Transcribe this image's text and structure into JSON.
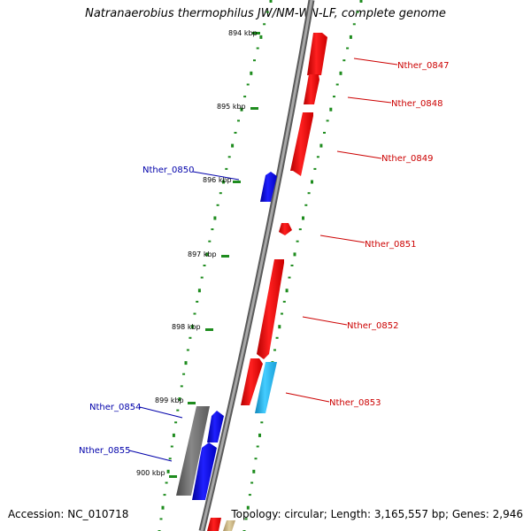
{
  "header": {
    "title": "Natranaerobius thermophilus JW/NM-WN-LF, complete genome"
  },
  "footer": {
    "accession": "Accession: NC_010718",
    "summary": "Topology: circular; Length: 3,165,557 bp; Genes: 2,946"
  },
  "colors": {
    "backbone": "#7f7f7f",
    "tick_dots": "#1e8c1e",
    "forward_gene": "#ff0000",
    "reverse_gene": "#0000ff",
    "cyan_gene": "#22bbee",
    "gray_gene": "#666666",
    "forward_label": "#cc0000",
    "reverse_label": "#0000aa"
  },
  "ticks": [
    "894 kbp",
    "895 kbp",
    "896 kbp",
    "897 kbp",
    "898 kbp",
    "899 kbp",
    "900 kbp"
  ],
  "gene_labels": [
    {
      "id": "Nther_0847",
      "strand": "forward"
    },
    {
      "id": "Nther_0848",
      "strand": "forward"
    },
    {
      "id": "Nther_0849",
      "strand": "forward"
    },
    {
      "id": "Nther_0850",
      "strand": "reverse"
    },
    {
      "id": "Nther_0851",
      "strand": "forward"
    },
    {
      "id": "Nther_0852",
      "strand": "forward"
    },
    {
      "id": "Nther_0853",
      "strand": "forward"
    },
    {
      "id": "Nther_0854",
      "strand": "reverse"
    },
    {
      "id": "Nther_0855",
      "strand": "reverse"
    }
  ]
}
